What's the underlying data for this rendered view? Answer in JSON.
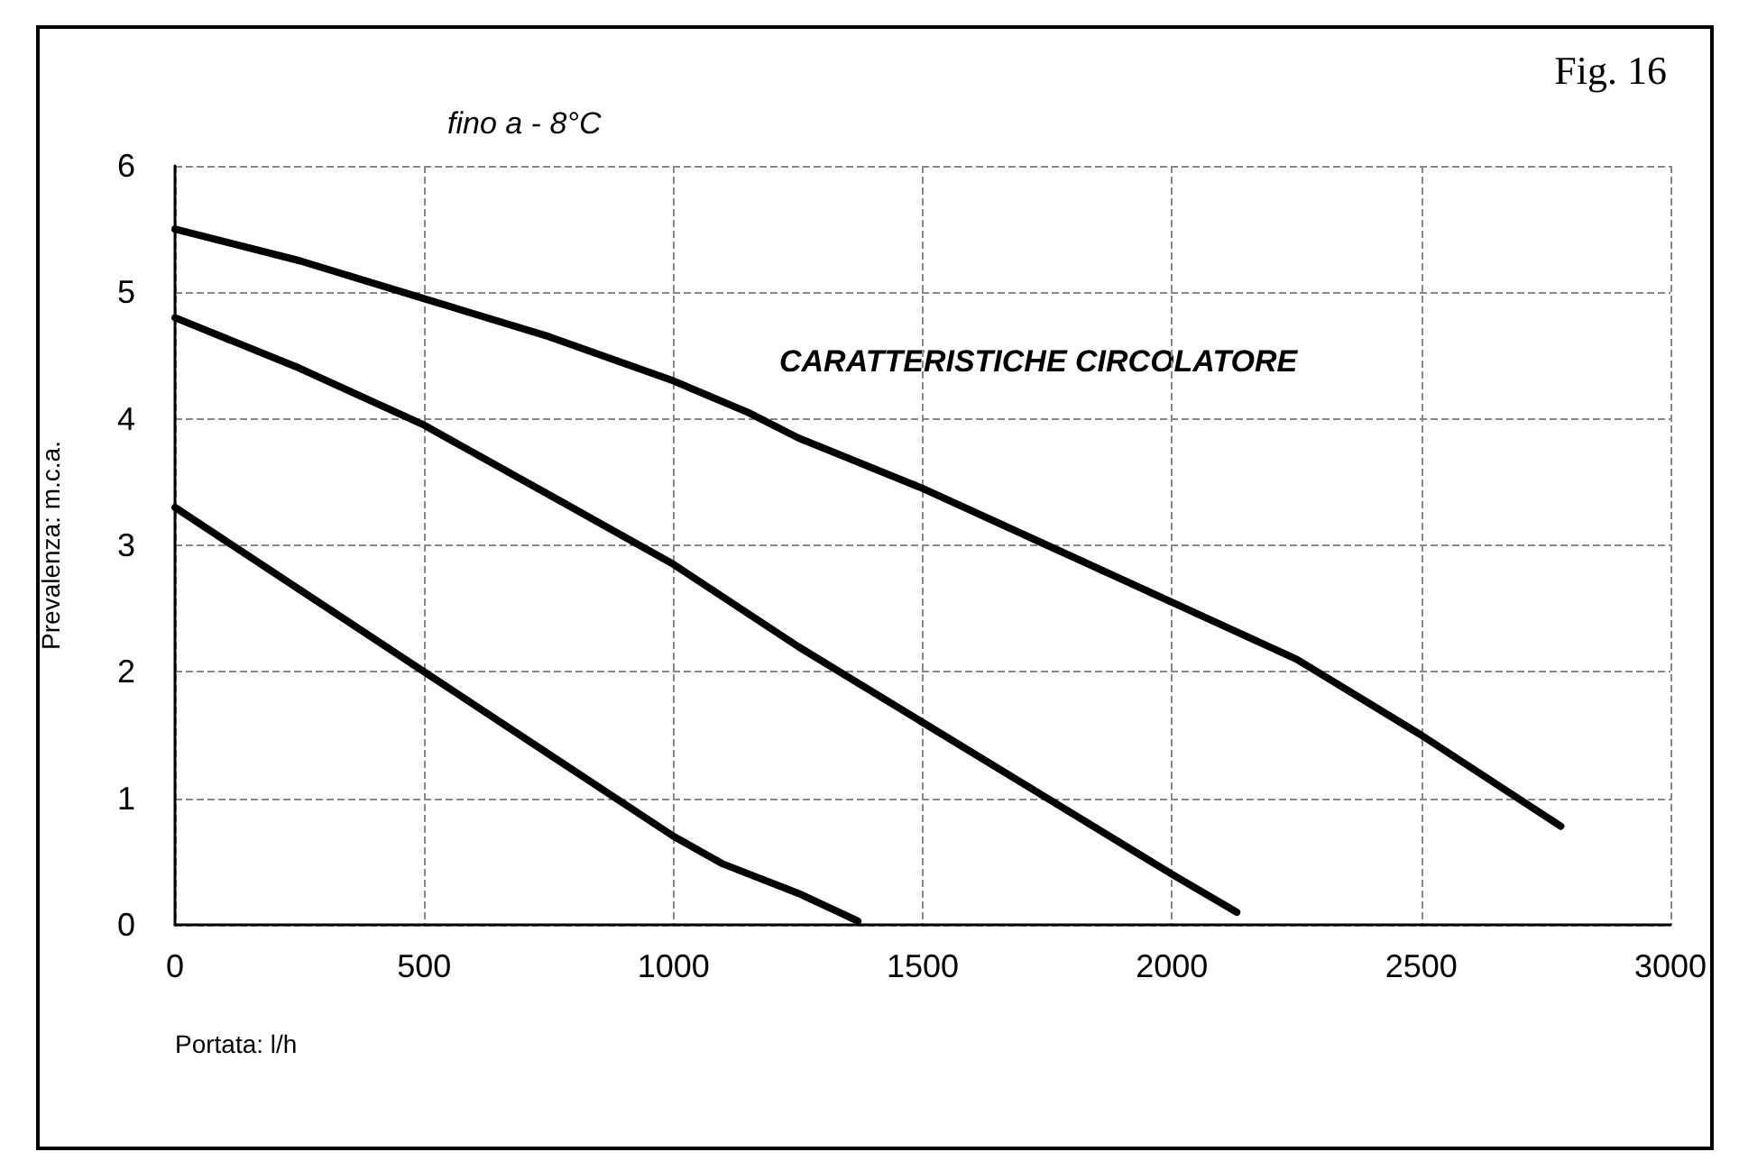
{
  "chart_data": {
    "type": "line",
    "title": "fino a - 8°C",
    "xlabel": "Portata: l/h",
    "ylabel": "Prevalenza: m.c.a.",
    "annotations": [
      "Fig. 16",
      "CARATTERISTICHE CIRCOLATORE"
    ],
    "series": [
      {
        "color": "#000000",
        "x": [
          0,
          250,
          500,
          750,
          1000,
          1150,
          1250,
          1500,
          1750,
          2000,
          2250,
          2500,
          2780
        ],
        "values": [
          5.5,
          5.25,
          4.95,
          4.65,
          4.3,
          4.05,
          3.85,
          3.45,
          3.0,
          2.55,
          2.1,
          1.5,
          0.78
        ]
      },
      {
        "color": "#000000",
        "x": [
          0,
          250,
          500,
          750,
          1000,
          1250,
          1500,
          1750,
          2000,
          2130
        ],
        "values": [
          4.8,
          4.4,
          3.95,
          3.4,
          2.85,
          2.2,
          1.6,
          1.0,
          0.4,
          0.1
        ]
      },
      {
        "color": "#000000",
        "x": [
          0,
          250,
          500,
          750,
          1000,
          1100,
          1250,
          1370
        ],
        "values": [
          3.3,
          2.65,
          2.0,
          1.35,
          0.7,
          0.48,
          0.25,
          0.03
        ]
      }
    ],
    "xlim": [
      0,
      3000
    ],
    "xticks": [
      0,
      500,
      1000,
      1500,
      2000,
      2500,
      3000
    ],
    "ylim": [
      0,
      6
    ],
    "yticks": [
      0,
      1,
      2,
      3,
      4,
      5,
      6
    ],
    "grid": true,
    "marker": "none",
    "line_style": "solid"
  }
}
